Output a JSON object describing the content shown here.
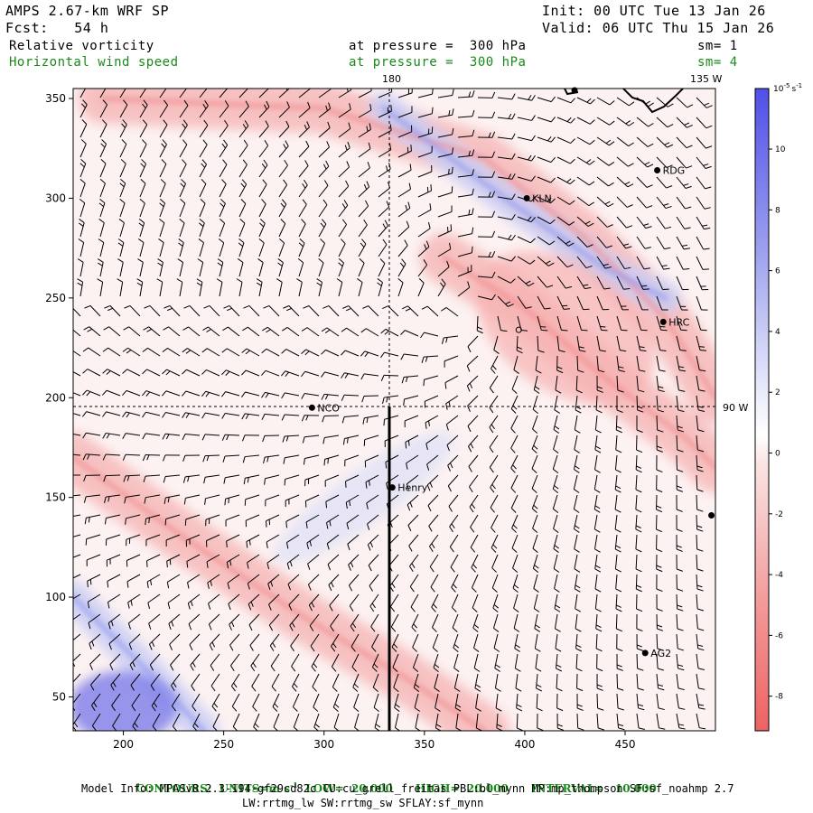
{
  "header": {
    "model": "AMPS 2.67-km WRF SP",
    "forecast": "Fcst:   54 h",
    "init": "Init: 00 UTC Tue 13 Jan 26",
    "valid": "Valid: 06 UTC Thu 15 Jan 26",
    "field1": "Relative vorticity",
    "field1_level": "at pressure =  300 hPa",
    "field1_sm": "sm= 1",
    "field2": "Horizontal wind speed",
    "field2_level": "at pressure =  300 hPa",
    "field2_sm": "sm= 4"
  },
  "footer": {
    "contours_label": "CONTOURS:",
    "units_label": "UNITS=",
    "units_value": "m s",
    "units_exp": "-1",
    "low": "LOW=  20.000",
    "high": "HIGH=  20.000",
    "interval": "INTERVAL=   10.000",
    "model_info": "Model Info: MPASv8.2.3-194-gf29cd82c CU:cu_grell_freitas PBL:bl_mynn MP:mp_thompson SF:sf_noahmp 2.7",
    "model_info2": "LW:rrtmg_lw SW:rrtmg_sw SFLAY:sf_mynn"
  },
  "colorbar": {
    "unit_label": "10",
    "unit_exp": "-5",
    "unit_suffix": "s",
    "unit_suffix_exp": "-1",
    "ticks": [
      "10",
      "8",
      "6",
      "4",
      "2",
      "0",
      "-2",
      "-4",
      "-6",
      "-8"
    ],
    "colors": {
      "strong_positive": "#5a5ae6",
      "positive": "#c9cdf5",
      "zero": "#ffffff",
      "negative": "#f6b8b8",
      "strong_negative": "#ee6a6a"
    }
  },
  "map_labels": {
    "lon_180": "180",
    "lon_135w": "135 W",
    "lon_90w": "90 W"
  },
  "stations": [
    {
      "name": "RDG",
      "x": 466,
      "y": 314
    },
    {
      "name": "KLN",
      "x": 401,
      "y": 300
    },
    {
      "name": "HRC",
      "x": 469,
      "y": 238
    },
    {
      "name": "NCO",
      "x": 294,
      "y": 195
    },
    {
      "name": "Henry",
      "x": 334,
      "y": 155
    },
    {
      "name": "AG2",
      "x": 460,
      "y": 72
    }
  ],
  "chart_data": {
    "type": "heatmap",
    "title": "",
    "xlabel": "",
    "ylabel": "",
    "xlim": [
      175,
      495
    ],
    "ylim": [
      33,
      355
    ],
    "xticks": [
      200,
      250,
      300,
      350,
      400,
      450
    ],
    "yticks": [
      50,
      100,
      150,
      200,
      250,
      300,
      350
    ],
    "cross_section_x": 334,
    "cross_section_y": [
      33,
      195
    ],
    "crosshair": {
      "x": 334,
      "y": 195
    },
    "vorticity_bands": [
      {
        "sign": "negative",
        "description": "jet core",
        "path": [
          [
            190,
            350
          ],
          [
            300,
            345
          ],
          [
            380,
            320
          ],
          [
            430,
            280
          ],
          [
            470,
            240
          ],
          [
            495,
            200
          ]
        ]
      },
      {
        "sign": "negative",
        "description": "shear zone",
        "path": [
          [
            360,
            270
          ],
          [
            400,
            245
          ],
          [
            440,
            210
          ],
          [
            480,
            180
          ],
          [
            495,
            165
          ]
        ]
      },
      {
        "sign": "negative",
        "description": "lower band",
        "path": [
          [
            175,
            170
          ],
          [
            230,
            130
          ],
          [
            290,
            90
          ],
          [
            340,
            60
          ],
          [
            380,
            33
          ]
        ]
      },
      {
        "sign": "positive",
        "description": "upper ridge",
        "path": [
          [
            330,
            345
          ],
          [
            390,
            300
          ],
          [
            440,
            265
          ],
          [
            470,
            250
          ]
        ]
      },
      {
        "sign": "positive",
        "description": "southwest",
        "path": [
          [
            175,
            100
          ],
          [
            215,
            60
          ],
          [
            240,
            33
          ]
        ]
      }
    ]
  }
}
